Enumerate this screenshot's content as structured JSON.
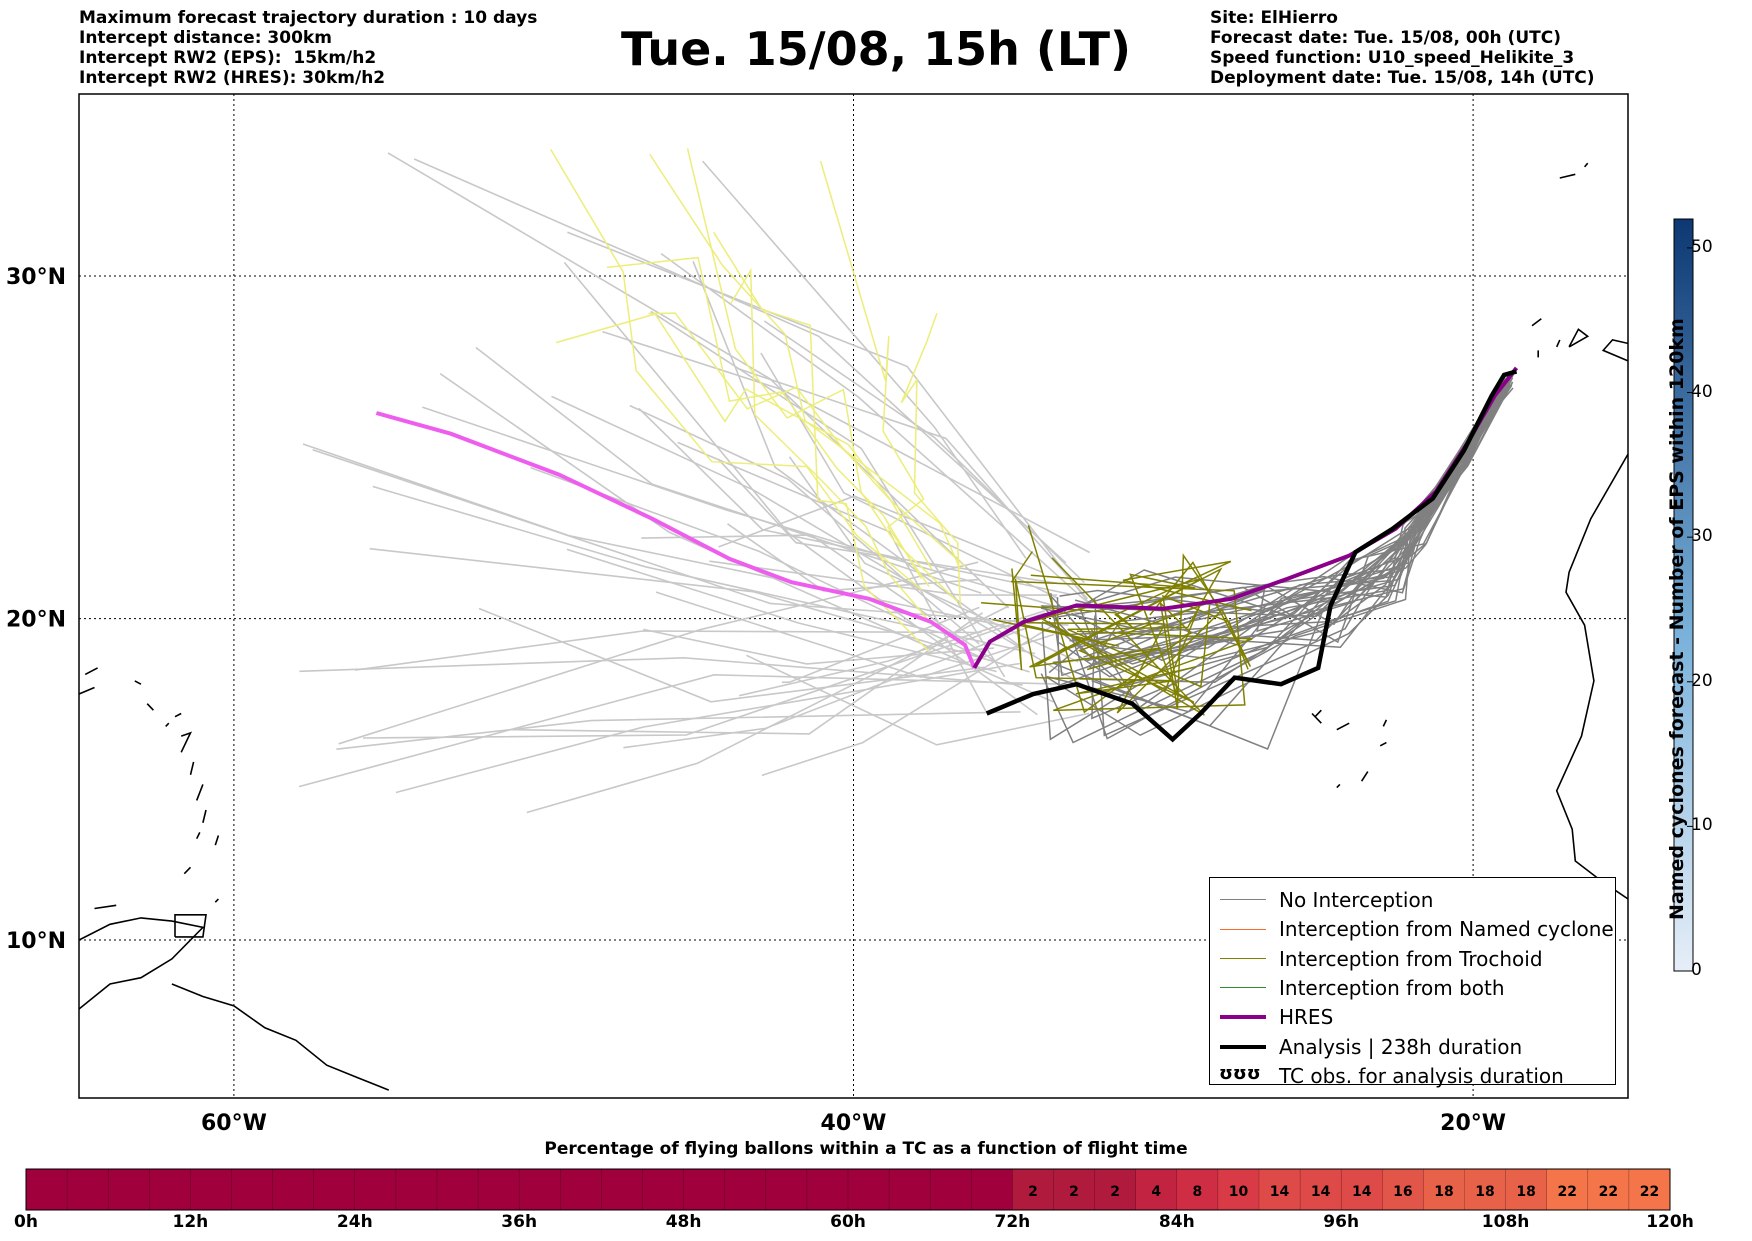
{
  "header_left": [
    "Maximum forecast trajectory duration : 10 days",
    "Intercept distance: 300km",
    "Intercept RW2 (EPS):  15km/h2",
    "Intercept RW2 (HRES): 30km/h2"
  ],
  "header_right": [
    "Site: ElHierro",
    "Forecast date: Tue. 15/08, 00h (UTC)",
    "Speed function: U10_speed_Helikite_3",
    "Deployment date: Tue. 15/08, 14h (UTC)"
  ],
  "title": "Tue. 15/08, 15h (LT)",
  "map": {
    "lon_range": [
      -65,
      -15
    ],
    "lat_range": [
      5,
      35
    ],
    "lat_ticks": [
      {
        "lat": 30,
        "label": "30°N"
      },
      {
        "lat": 20,
        "label": "20°N"
      },
      {
        "lat": 10,
        "label": "10°N"
      }
    ],
    "lon_ticks": [
      {
        "lon": -60,
        "label": "60°W"
      },
      {
        "lon": -40,
        "label": "40°W"
      },
      {
        "lon": -20,
        "label": "20°W"
      }
    ],
    "deployment_point": {
      "lon": -36.1,
      "lat": 18.5
    },
    "hres_track": [
      [
        -36.1,
        18.5
      ],
      [
        -35.6,
        19.3
      ],
      [
        -34.5,
        19.9
      ],
      [
        -32.8,
        20.4
      ],
      [
        -30.0,
        20.3
      ],
      [
        -27.8,
        20.6
      ],
      [
        -26.0,
        21.2
      ],
      [
        -24.0,
        21.9
      ],
      [
        -22.5,
        22.7
      ],
      [
        -21.2,
        23.8
      ],
      [
        -20.2,
        25.2
      ],
      [
        -19.3,
        26.6
      ],
      [
        -18.6,
        27.4
      ]
    ],
    "analysis_track": [
      [
        -35.7,
        17.1
      ],
      [
        -34.2,
        17.7
      ],
      [
        -32.8,
        18.0
      ],
      [
        -31.0,
        17.4
      ],
      [
        -29.7,
        16.3
      ],
      [
        -28.8,
        17.1
      ],
      [
        -27.7,
        18.2
      ],
      [
        -26.2,
        18.0
      ],
      [
        -25.0,
        18.5
      ],
      [
        -24.6,
        20.4
      ],
      [
        -23.8,
        22.0
      ],
      [
        -22.6,
        22.7
      ],
      [
        -21.3,
        23.6
      ],
      [
        -20.3,
        25.0
      ],
      [
        -19.4,
        26.6
      ],
      [
        -19.0,
        27.2
      ],
      [
        -18.6,
        27.3
      ]
    ],
    "pink_track": [
      [
        -55.4,
        26.1
      ],
      [
        -53.0,
        25.5
      ],
      [
        -49.5,
        24.3
      ],
      [
        -46.5,
        23.0
      ],
      [
        -44.0,
        21.8
      ],
      [
        -42.0,
        21.1
      ],
      [
        -39.5,
        20.6
      ],
      [
        -37.5,
        19.9
      ],
      [
        -36.4,
        19.2
      ],
      [
        -36.1,
        18.5
      ]
    ],
    "colors": {
      "no_interception": "#808080",
      "named_cyclone": "#ff6a2b",
      "trochoid": "#808000",
      "both": "#2e8b2e",
      "hres": "#8b008b",
      "analysis": "#000000",
      "pink": "#ee5eee",
      "eps_light": "#c8c8c8",
      "yellow": "#eded7a"
    }
  },
  "legend": {
    "items": [
      {
        "label": "No Interception",
        "style": "thin-gray"
      },
      {
        "label": "Interception from Named cyclone",
        "style": "thin-orange"
      },
      {
        "label": "Interception from Trochoid",
        "style": "thin-olive"
      },
      {
        "label": "Interception from both",
        "style": "thin-green"
      },
      {
        "label": "HRES",
        "style": "thick-purple"
      },
      {
        "label": "Analysis | 238h duration",
        "style": "thick-black"
      },
      {
        "label": "TC obs. for analysis duration",
        "style": "tc-symbol",
        "symbol": "ʊʊʊ"
      }
    ]
  },
  "colorbar": {
    "title": "Named cyclones forecast - Number of EPS within 120km",
    "min": 0,
    "max": 52,
    "ticks": [
      "0",
      "10",
      "20",
      "30",
      "40",
      "50"
    ],
    "tick_values": [
      0,
      10,
      20,
      30,
      40,
      50
    ],
    "color_low": "#e6eef8",
    "color_high": "#0d3873"
  },
  "time_bar": {
    "title": "Percentage of flying ballons within a TC as a function of flight time",
    "hours_max": 120,
    "tick_labels": [
      "0h",
      "12h",
      "24h",
      "36h",
      "48h",
      "60h",
      "72h",
      "84h",
      "96h",
      "108h",
      "120h"
    ],
    "base_color": "#a0003c",
    "cells": [
      {
        "start": 72,
        "label": "2",
        "color": "#b01a3d"
      },
      {
        "start": 75,
        "label": "2",
        "color": "#b01a3d"
      },
      {
        "start": 78,
        "label": "2",
        "color": "#b01a3d"
      },
      {
        "start": 81,
        "label": "4",
        "color": "#c12340"
      },
      {
        "start": 84,
        "label": "8",
        "color": "#cf2d43"
      },
      {
        "start": 87,
        "label": "10",
        "color": "#d83a46"
      },
      {
        "start": 90,
        "label": "14",
        "color": "#de4a47"
      },
      {
        "start": 93,
        "label": "14",
        "color": "#de4a47"
      },
      {
        "start": 96,
        "label": "14",
        "color": "#de4a47"
      },
      {
        "start": 99,
        "label": "16",
        "color": "#e25549"
      },
      {
        "start": 102,
        "label": "18",
        "color": "#e8624a"
      },
      {
        "start": 105,
        "label": "18",
        "color": "#e8624a"
      },
      {
        "start": 108,
        "label": "18",
        "color": "#e8624a"
      },
      {
        "start": 111,
        "label": "22",
        "color": "#f37549"
      },
      {
        "start": 114,
        "label": "22",
        "color": "#f37549"
      },
      {
        "start": 117,
        "label": "22",
        "color": "#f37549"
      }
    ]
  }
}
